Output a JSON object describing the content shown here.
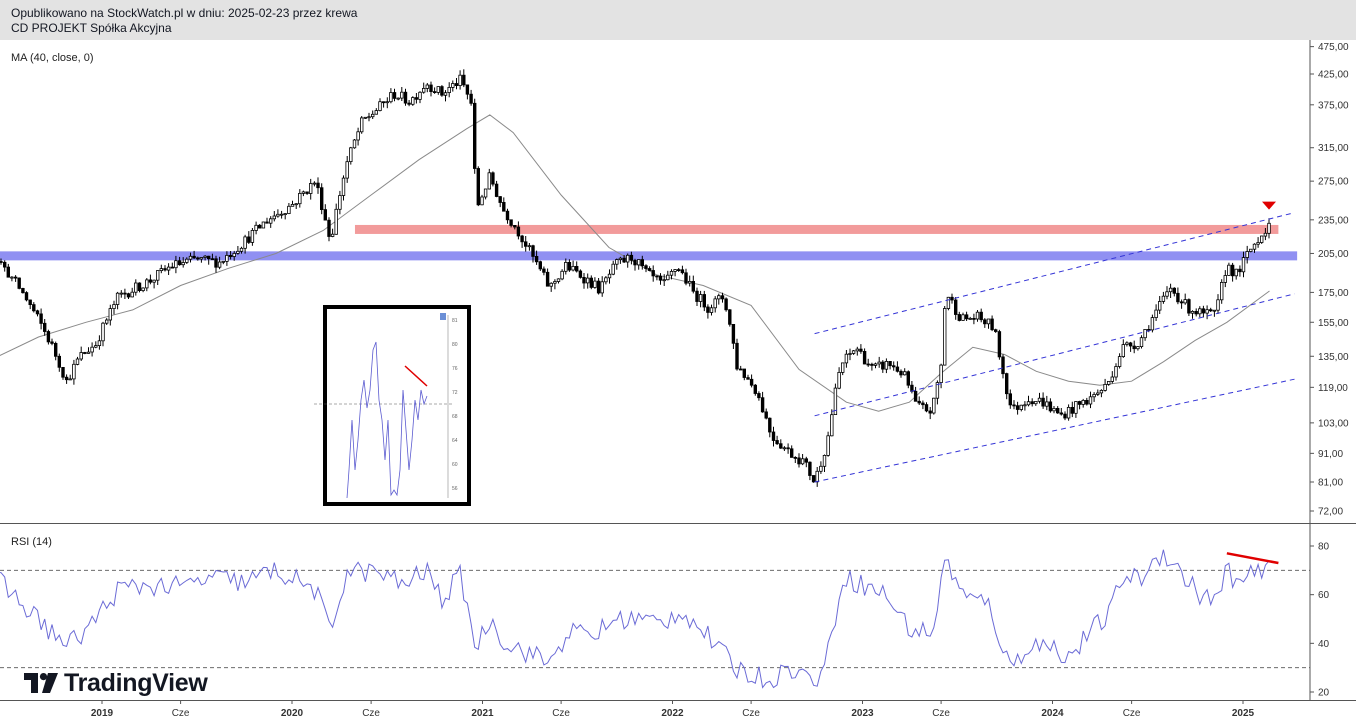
{
  "header": {
    "line1": "Opublikowano na StockWatch.pl w dniu: 2025-02-23 przez krewa",
    "line2": "CD PROJEKT Spółka Akcyjna"
  },
  "indicators": {
    "ma_label": "MA (40, close, 0)",
    "rsi_label": "RSI (14)"
  },
  "brand": {
    "name": "TradingView"
  },
  "colors": {
    "candle": "#000000",
    "ma": "#8a8a8a",
    "rsi": "#6b6bd6",
    "channel": "#3434d6",
    "resistance_red": "#f08a8a",
    "support_blue": "#7c7cf0",
    "divergence": "#e00000"
  },
  "chart_data": [
    {
      "type": "candlestick",
      "title": "",
      "y_scale": "log",
      "y_ticks": [
        "475,00",
        "425,00",
        "375,00",
        "315,00",
        "275,00",
        "235,00",
        "205,00",
        "175,00",
        "155,00",
        "135,00",
        "119,00",
        "103,00",
        "91,00",
        "81,00",
        "72,00"
      ],
      "y_tick_values": [
        475,
        425,
        375,
        315,
        275,
        235,
        205,
        175,
        155,
        135,
        119,
        103,
        91,
        81,
        72
      ],
      "x_ticks": [
        {
          "label": "2019",
          "bold": true,
          "date": "2019-01-01"
        },
        {
          "label": "Cze",
          "bold": false,
          "date": "2019-06-01"
        },
        {
          "label": "2020",
          "bold": true,
          "date": "2020-01-01"
        },
        {
          "label": "Cze",
          "bold": false,
          "date": "2020-06-01"
        },
        {
          "label": "2021",
          "bold": true,
          "date": "2021-01-01"
        },
        {
          "label": "Cze",
          "bold": false,
          "date": "2021-06-01"
        },
        {
          "label": "2022",
          "bold": true,
          "date": "2022-01-01"
        },
        {
          "label": "Cze",
          "bold": false,
          "date": "2022-06-01"
        },
        {
          "label": "2023",
          "bold": true,
          "date": "2023-01-01"
        },
        {
          "label": "Cze",
          "bold": false,
          "date": "2023-06-01"
        },
        {
          "label": "2024",
          "bold": true,
          "date": "2024-01-01"
        },
        {
          "label": "Cze",
          "bold": false,
          "date": "2024-06-01"
        },
        {
          "label": "2025",
          "bold": true,
          "date": "2025-01-01"
        }
      ],
      "price_path": [
        [
          "2018-03-01",
          160
        ],
        [
          "2018-05-01",
          205
        ],
        [
          "2018-06-15",
          200
        ],
        [
          "2018-08-01",
          175
        ],
        [
          "2018-09-20",
          145
        ],
        [
          "2018-10-25",
          122
        ],
        [
          "2018-11-20",
          135
        ],
        [
          "2018-12-20",
          142
        ],
        [
          "2019-02-01",
          172
        ],
        [
          "2019-04-01",
          183
        ],
        [
          "2019-05-15",
          195
        ],
        [
          "2019-07-01",
          200
        ],
        [
          "2019-08-15",
          198
        ],
        [
          "2019-10-01",
          215
        ],
        [
          "2019-11-15",
          235
        ],
        [
          "2020-01-01",
          250
        ],
        [
          "2020-02-15",
          275
        ],
        [
          "2020-03-15",
          215
        ],
        [
          "2020-04-15",
          295
        ],
        [
          "2020-05-15",
          350
        ],
        [
          "2020-06-15",
          370
        ],
        [
          "2020-07-15",
          392
        ],
        [
          "2020-08-15",
          380
        ],
        [
          "2020-09-15",
          410
        ],
        [
          "2020-10-15",
          392
        ],
        [
          "2020-11-20",
          415
        ],
        [
          "2020-12-10",
          378
        ],
        [
          "2020-12-20",
          245
        ],
        [
          "2021-01-15",
          280
        ],
        [
          "2021-02-10",
          245
        ],
        [
          "2021-03-10",
          225
        ],
        [
          "2021-04-10",
          200
        ],
        [
          "2021-05-10",
          178
        ],
        [
          "2021-06-10",
          195
        ],
        [
          "2021-07-15",
          186
        ],
        [
          "2021-08-15",
          177
        ],
        [
          "2021-09-15",
          196
        ],
        [
          "2021-10-15",
          202
        ],
        [
          "2021-11-15",
          188
        ],
        [
          "2021-12-15",
          180
        ],
        [
          "2022-01-10",
          195
        ],
        [
          "2022-02-10",
          175
        ],
        [
          "2022-03-10",
          165
        ],
        [
          "2022-04-10",
          172
        ],
        [
          "2022-05-05",
          130
        ],
        [
          "2022-06-10",
          118
        ],
        [
          "2022-07-10",
          98
        ],
        [
          "2022-08-10",
          92
        ],
        [
          "2022-09-10",
          88
        ],
        [
          "2022-10-01",
          81
        ],
        [
          "2022-10-25",
          95
        ],
        [
          "2022-11-20",
          130
        ],
        [
          "2022-12-20",
          140
        ],
        [
          "2023-01-20",
          128
        ],
        [
          "2023-02-20",
          131
        ],
        [
          "2023-03-20",
          126
        ],
        [
          "2023-04-15",
          110
        ],
        [
          "2023-05-15",
          108
        ],
        [
          "2023-06-01",
          130
        ],
        [
          "2023-06-10",
          175
        ],
        [
          "2023-07-10",
          157
        ],
        [
          "2023-08-10",
          158
        ],
        [
          "2023-09-10",
          152
        ],
        [
          "2023-10-01",
          122
        ],
        [
          "2023-10-15",
          108
        ],
        [
          "2023-11-15",
          114
        ],
        [
          "2023-12-15",
          112
        ],
        [
          "2024-01-15",
          106
        ],
        [
          "2024-02-15",
          110
        ],
        [
          "2024-03-15",
          114
        ],
        [
          "2024-04-15",
          120
        ],
        [
          "2024-05-15",
          140
        ],
        [
          "2024-06-15",
          143
        ],
        [
          "2024-07-15",
          160
        ],
        [
          "2024-08-15",
          178
        ],
        [
          "2024-09-15",
          165
        ],
        [
          "2024-10-15",
          160
        ],
        [
          "2024-11-10",
          160
        ],
        [
          "2024-12-01",
          196
        ],
        [
          "2024-12-20",
          188
        ],
        [
          "2025-01-15",
          208
        ],
        [
          "2025-02-10",
          225
        ],
        [
          "2025-02-21",
          232
        ]
      ],
      "moving_average_40": {
        "label": "MA (40, close, 0)",
        "path": [
          [
            "2018-03-01",
            117
          ],
          [
            "2018-06-01",
            133
          ],
          [
            "2018-09-01",
            146
          ],
          [
            "2018-12-01",
            155
          ],
          [
            "2019-03-01",
            163
          ],
          [
            "2019-06-01",
            180
          ],
          [
            "2019-09-01",
            193
          ],
          [
            "2019-12-01",
            205
          ],
          [
            "2020-03-01",
            225
          ],
          [
            "2020-06-01",
            260
          ],
          [
            "2020-09-01",
            300
          ],
          [
            "2020-12-01",
            340
          ],
          [
            "2021-01-15",
            360
          ],
          [
            "2021-03-01",
            335
          ],
          [
            "2021-06-01",
            260
          ],
          [
            "2021-09-01",
            210
          ],
          [
            "2021-12-01",
            188
          ],
          [
            "2022-03-01",
            180
          ],
          [
            "2022-06-01",
            166
          ],
          [
            "2022-09-01",
            128
          ],
          [
            "2022-12-01",
            112
          ],
          [
            "2023-02-01",
            108
          ],
          [
            "2023-04-01",
            112
          ],
          [
            "2023-06-01",
            126
          ],
          [
            "2023-08-01",
            140
          ],
          [
            "2023-10-01",
            136
          ],
          [
            "2023-12-01",
            127
          ],
          [
            "2024-02-01",
            122
          ],
          [
            "2024-04-01",
            120
          ],
          [
            "2024-06-01",
            122
          ],
          [
            "2024-08-01",
            132
          ],
          [
            "2024-10-01",
            144
          ],
          [
            "2024-12-01",
            155
          ],
          [
            "2025-02-21",
            176
          ]
        ]
      },
      "horizontal_zones": [
        {
          "name": "resistance",
          "value": 226,
          "color": "#f08a8a",
          "from": "2020-05-01",
          "to": "2025-03-10"
        },
        {
          "name": "support",
          "value": 203,
          "color": "#7c7cf0",
          "from": "2018-01-01",
          "to": "2025-04-15"
        }
      ],
      "channel_lines": [
        {
          "from": [
            "2022-10-01",
            81
          ],
          "to": [
            "2025-04-10",
            123
          ]
        },
        {
          "from": [
            "2022-10-01",
            106
          ],
          "to": [
            "2025-04-10",
            174
          ]
        },
        {
          "from": [
            "2022-10-01",
            148
          ],
          "to": [
            "2025-04-10",
            242
          ]
        }
      ],
      "marker": {
        "shape": "down-triangle",
        "date": "2025-02-20",
        "value": 249,
        "color": "#e00000"
      }
    },
    {
      "type": "line",
      "title": "RSI (14)",
      "y_ticks": [
        80,
        60,
        40,
        20
      ],
      "ylim": [
        18,
        84
      ],
      "levels": [
        70,
        30
      ],
      "series": [
        {
          "name": "RSI (14)",
          "path": [
            [
              "2018-03-01",
              71
            ],
            [
              "2018-06-01",
              69
            ],
            [
              "2018-08-01",
              56
            ],
            [
              "2018-10-25",
              39
            ],
            [
              "2018-12-01",
              45
            ],
            [
              "2019-02-01",
              62
            ],
            [
              "2019-04-01",
              64
            ],
            [
              "2019-06-01",
              63
            ],
            [
              "2019-08-01",
              67
            ],
            [
              "2019-10-01",
              65
            ],
            [
              "2019-12-01",
              70
            ],
            [
              "2020-02-15",
              62
            ],
            [
              "2020-03-15",
              44
            ],
            [
              "2020-04-15",
              70
            ],
            [
              "2020-06-15",
              69
            ],
            [
              "2020-08-01",
              64
            ],
            [
              "2020-09-15",
              70
            ],
            [
              "2020-10-15",
              58
            ],
            [
              "2020-11-20",
              68
            ],
            [
              "2020-12-20",
              38
            ],
            [
              "2021-01-15",
              50
            ],
            [
              "2021-02-15",
              40
            ],
            [
              "2021-04-01",
              36
            ],
            [
              "2021-05-10",
              32
            ],
            [
              "2021-06-15",
              45
            ],
            [
              "2021-08-01",
              43
            ],
            [
              "2021-09-15",
              50
            ],
            [
              "2021-11-01",
              50
            ],
            [
              "2021-12-15",
              48
            ],
            [
              "2022-01-15",
              54
            ],
            [
              "2022-03-01",
              45
            ],
            [
              "2022-05-01",
              30
            ],
            [
              "2022-07-01",
              25
            ],
            [
              "2022-08-20",
              30
            ],
            [
              "2022-10-01",
              24
            ],
            [
              "2022-10-25",
              34
            ],
            [
              "2022-11-25",
              68
            ],
            [
              "2023-01-01",
              64
            ],
            [
              "2023-02-15",
              60
            ],
            [
              "2023-04-01",
              46
            ],
            [
              "2023-05-15",
              44
            ],
            [
              "2023-06-10",
              75
            ],
            [
              "2023-07-15",
              59
            ],
            [
              "2023-09-01",
              56
            ],
            [
              "2023-10-10",
              30
            ],
            [
              "2023-11-20",
              40
            ],
            [
              "2024-01-10",
              38
            ],
            [
              "2024-02-01",
              34
            ],
            [
              "2024-03-15",
              45
            ],
            [
              "2024-04-20",
              52
            ],
            [
              "2024-05-15",
              68
            ],
            [
              "2024-06-15",
              66
            ],
            [
              "2024-08-01",
              78
            ],
            [
              "2024-09-15",
              66
            ],
            [
              "2024-10-20",
              58
            ],
            [
              "2024-11-20",
              60
            ],
            [
              "2024-12-01",
              72
            ],
            [
              "2024-12-20",
              64
            ],
            [
              "2025-01-20",
              68
            ],
            [
              "2025-02-21",
              70
            ]
          ]
        }
      ],
      "divergence_line": {
        "from": [
          "2024-12-01",
          77
        ],
        "to": [
          "2025-03-10",
          73
        ],
        "color": "#e00000"
      }
    }
  ],
  "inset": {
    "description_free": true,
    "y_ticks": [
      "81",
      "80",
      "76",
      "72",
      "68",
      "64",
      "60",
      "56"
    ]
  }
}
